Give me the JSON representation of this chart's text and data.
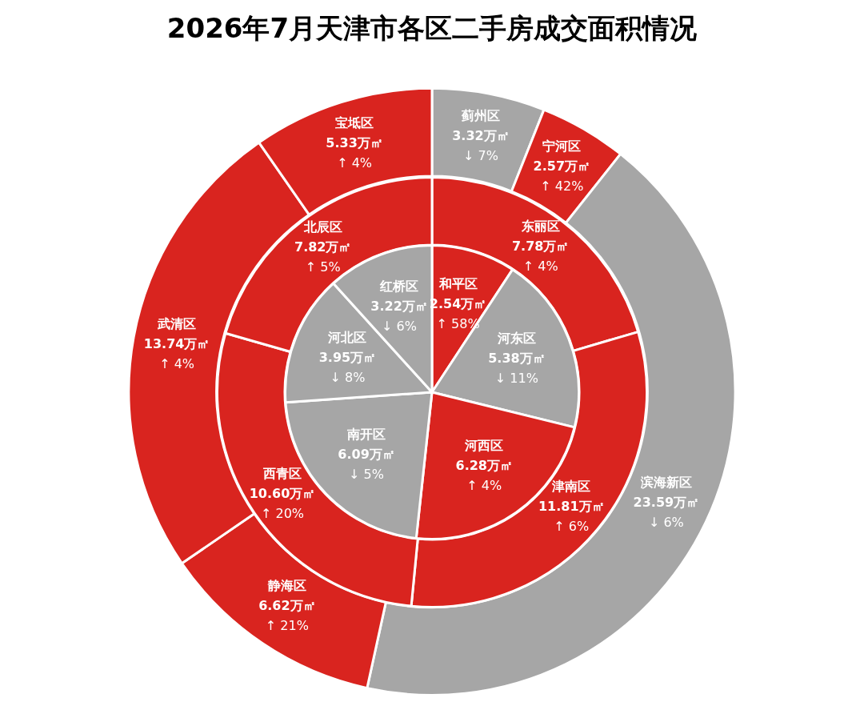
{
  "chart_data": [
    {
      "type": "donut",
      "title": "2026年7月天津市各区二手房成交面积情况",
      "categories": [
        "蓟州区",
        "宁河区",
        "滨海新区",
        "静海区",
        "武清区",
        "宝坻区"
      ],
      "values": [
        3.32,
        2.57,
        23.59,
        6.62,
        13.74,
        5.33
      ],
      "colors": [
        "#a6a6a6",
        "#d9241f",
        "#a6a6a6",
        "#d9241f",
        "#d9241f",
        "#d9241f"
      ],
      "value_labels": [
        "3.32万㎡\n↓ 7%",
        "2.57万㎡\n↑ 42%",
        "23.59万㎡\n↓ 6%",
        "6.62万㎡\n↑ 21%",
        "13.74万㎡\n↑ 4%",
        "5.33万㎡\n↑ 4%"
      ]
    },
    {
      "type": "donut",
      "categories": [
        "东丽区",
        "津南区",
        "西青区",
        "北辰区"
      ],
      "values": [
        7.78,
        11.81,
        10.6,
        7.82
      ],
      "colors": [
        "#d9241f",
        "#d9241f",
        "#d9241f",
        "#d9241f"
      ],
      "value_labels": [
        "7.78万㎡\n↑ 4%",
        "11.81万㎡\n↑ 6%",
        "10.60万㎡\n↑ 20%",
        "7.82万㎡\n↑ 5%"
      ]
    },
    {
      "type": "pie",
      "categories": [
        "和平区",
        "河东区",
        "河西区",
        "南开区",
        "河北区",
        "红桥区"
      ],
      "values": [
        2.54,
        5.38,
        6.28,
        6.09,
        3.95,
        3.22
      ],
      "colors": [
        "#d9241f",
        "#a6a6a6",
        "#d9241f",
        "#a6a6a6",
        "#a6a6a6",
        "#a6a6a6"
      ],
      "value_labels": [
        "2.54万㎡\n↑ 58%",
        "5.38万㎡\n↓ 11%",
        "6.28万㎡\n↑ 4%",
        "6.09万㎡\n↓ 5%",
        "3.95万㎡\n↓ 8%",
        "3.22万㎡\n↓ 6%"
      ]
    }
  ]
}
